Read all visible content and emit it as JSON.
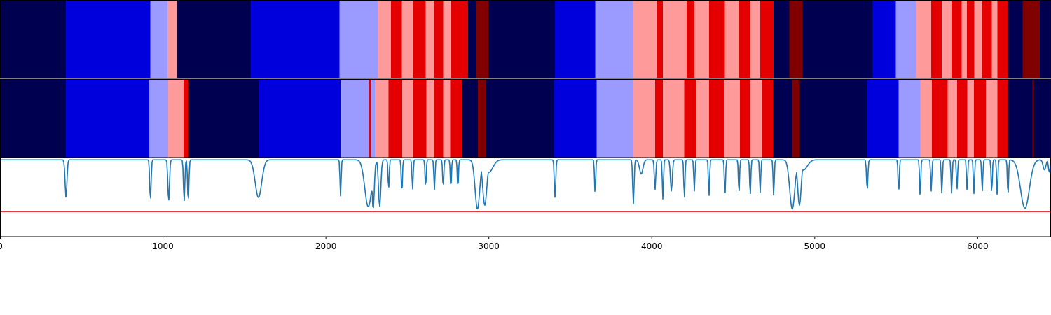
{
  "chart_data": {
    "type": "heatmap",
    "title": "",
    "xlabel": "",
    "ylabel": "",
    "xlim": [
      0,
      6450
    ],
    "x_ticks": [
      0,
      1000,
      2000,
      3000,
      4000,
      5000,
      6000
    ],
    "x_tick_labels": [
      "0",
      "1000",
      "2000",
      "3000",
      "4000",
      "5000",
      "6000"
    ],
    "colors": {
      "0": "#000050",
      "1": "#0000dc",
      "2": "#9a9aff",
      "3": "#ff9a9a",
      "4": "#e40000",
      "5": "#800000"
    },
    "rows": [
      {
        "segments": [
          [
            0,
            405,
            0
          ],
          [
            405,
            923,
            1
          ],
          [
            923,
            1027,
            2
          ],
          [
            1027,
            1085,
            3
          ],
          [
            1085,
            1539,
            0
          ],
          [
            1539,
            2084,
            1
          ],
          [
            2084,
            2322,
            2
          ],
          [
            2322,
            2399,
            3
          ],
          [
            2399,
            2466,
            4
          ],
          [
            2466,
            2532,
            3
          ],
          [
            2532,
            2612,
            4
          ],
          [
            2612,
            2666,
            3
          ],
          [
            2666,
            2720,
            4
          ],
          [
            2720,
            2767,
            3
          ],
          [
            2767,
            2810,
            4
          ],
          [
            2810,
            2872,
            4
          ],
          [
            2872,
            2922,
            0
          ],
          [
            2922,
            2997,
            5
          ],
          [
            2997,
            3406,
            0
          ],
          [
            3406,
            3652,
            1
          ],
          [
            3652,
            3883,
            2
          ],
          [
            3883,
            4032,
            3
          ],
          [
            4032,
            4068,
            4
          ],
          [
            4068,
            4213,
            3
          ],
          [
            4213,
            4261,
            4
          ],
          [
            4261,
            4351,
            3
          ],
          [
            4351,
            4449,
            4
          ],
          [
            4449,
            4535,
            3
          ],
          [
            4535,
            4604,
            4
          ],
          [
            4604,
            4665,
            3
          ],
          [
            4665,
            4748,
            4
          ],
          [
            4748,
            4845,
            0
          ],
          [
            4845,
            4925,
            5
          ],
          [
            4925,
            5356,
            0
          ],
          [
            5356,
            5498,
            1
          ],
          [
            5498,
            5622,
            2
          ],
          [
            5622,
            5714,
            3
          ],
          [
            5714,
            5780,
            4
          ],
          [
            5780,
            5840,
            3
          ],
          [
            5840,
            5901,
            4
          ],
          [
            5901,
            5935,
            3
          ],
          [
            5935,
            5980,
            4
          ],
          [
            5980,
            6028,
            3
          ],
          [
            6028,
            6086,
            4
          ],
          [
            6086,
            6120,
            3
          ],
          [
            6120,
            6186,
            4
          ],
          [
            6186,
            6276,
            0
          ],
          [
            6276,
            6381,
            5
          ],
          [
            6381,
            6450,
            0
          ]
        ]
      },
      {
        "segments": [
          [
            0,
            405,
            0
          ],
          [
            405,
            916,
            1
          ],
          [
            916,
            1032,
            2
          ],
          [
            1032,
            1126,
            3
          ],
          [
            1126,
            1157,
            4
          ],
          [
            1157,
            1586,
            0
          ],
          [
            1586,
            2090,
            1
          ],
          [
            2090,
            2263,
            2
          ],
          [
            2263,
            2279,
            4
          ],
          [
            2279,
            2300,
            2
          ],
          [
            2300,
            2320,
            3
          ],
          [
            2320,
            2385,
            3
          ],
          [
            2385,
            2469,
            4
          ],
          [
            2469,
            2532,
            3
          ],
          [
            2532,
            2617,
            4
          ],
          [
            2617,
            2662,
            3
          ],
          [
            2662,
            2720,
            4
          ],
          [
            2720,
            2762,
            3
          ],
          [
            2762,
            2834,
            4
          ],
          [
            2834,
            2932,
            0
          ],
          [
            2932,
            2983,
            5
          ],
          [
            2983,
            3399,
            0
          ],
          [
            3399,
            3662,
            1
          ],
          [
            3662,
            3887,
            2
          ],
          [
            3887,
            4020,
            3
          ],
          [
            4020,
            4068,
            4
          ],
          [
            4068,
            4200,
            3
          ],
          [
            4200,
            4275,
            4
          ],
          [
            4275,
            4352,
            3
          ],
          [
            4352,
            4446,
            4
          ],
          [
            4446,
            4540,
            3
          ],
          [
            4540,
            4604,
            4
          ],
          [
            4604,
            4676,
            3
          ],
          [
            4676,
            4743,
            4
          ],
          [
            4743,
            4862,
            0
          ],
          [
            4862,
            4906,
            5
          ],
          [
            4906,
            5322,
            0
          ],
          [
            5322,
            5515,
            1
          ],
          [
            5515,
            5647,
            2
          ],
          [
            5647,
            5720,
            3
          ],
          [
            5720,
            5815,
            4
          ],
          [
            5815,
            5873,
            3
          ],
          [
            5873,
            5936,
            4
          ],
          [
            5936,
            5977,
            3
          ],
          [
            5977,
            6050,
            4
          ],
          [
            6050,
            6120,
            3
          ],
          [
            6120,
            6186,
            4
          ],
          [
            6186,
            6337,
            0
          ],
          [
            6337,
            6345,
            5
          ],
          [
            6345,
            6450,
            0
          ]
        ]
      }
    ],
    "line_panel": {
      "ylim": [
        0,
        1
      ],
      "threshold": 0.32,
      "threshold_color": "#e02020",
      "line_color": "#1f77b4",
      "baseline": 0.98,
      "dips": [
        [
          405,
          0.5,
          8
        ],
        [
          923,
          0.46,
          6
        ],
        [
          1035,
          0.45,
          7
        ],
        [
          1130,
          0.45,
          6
        ],
        [
          1155,
          0.45,
          6
        ],
        [
          1586,
          0.5,
          28
        ],
        [
          2090,
          0.52,
          5
        ],
        [
          2260,
          0.38,
          30
        ],
        [
          2290,
          0.35,
          10
        ],
        [
          2330,
          0.38,
          10
        ],
        [
          2385,
          0.6,
          5
        ],
        [
          2466,
          0.55,
          5
        ],
        [
          2532,
          0.6,
          5
        ],
        [
          2612,
          0.62,
          5
        ],
        [
          2666,
          0.6,
          5
        ],
        [
          2720,
          0.62,
          5
        ],
        [
          2767,
          0.62,
          5
        ],
        [
          2810,
          0.62,
          5
        ],
        [
          2930,
          0.35,
          20
        ],
        [
          2975,
          0.4,
          18
        ],
        [
          3000,
          0.82,
          35
        ],
        [
          3406,
          0.5,
          6
        ],
        [
          3652,
          0.55,
          5
        ],
        [
          3887,
          0.42,
          6
        ],
        [
          3935,
          0.8,
          15
        ],
        [
          4020,
          0.6,
          6
        ],
        [
          4068,
          0.48,
          5
        ],
        [
          4120,
          0.58,
          8
        ],
        [
          4200,
          0.48,
          5
        ],
        [
          4261,
          0.58,
          5
        ],
        [
          4351,
          0.52,
          5
        ],
        [
          4449,
          0.52,
          5
        ],
        [
          4535,
          0.55,
          5
        ],
        [
          4604,
          0.52,
          5
        ],
        [
          4665,
          0.56,
          5
        ],
        [
          4748,
          0.52,
          5
        ],
        [
          4862,
          0.35,
          22
        ],
        [
          4906,
          0.4,
          15
        ],
        [
          4930,
          0.85,
          35
        ],
        [
          5322,
          0.6,
          6
        ],
        [
          5515,
          0.55,
          5
        ],
        [
          5647,
          0.52,
          5
        ],
        [
          5715,
          0.58,
          5
        ],
        [
          5780,
          0.55,
          5
        ],
        [
          5840,
          0.55,
          5
        ],
        [
          5873,
          0.6,
          5
        ],
        [
          5935,
          0.58,
          5
        ],
        [
          5977,
          0.55,
          5
        ],
        [
          6028,
          0.58,
          5
        ],
        [
          6086,
          0.55,
          5
        ],
        [
          6120,
          0.52,
          5
        ],
        [
          6186,
          0.52,
          5
        ],
        [
          6290,
          0.36,
          38
        ],
        [
          6410,
          0.85,
          12
        ],
        [
          6440,
          0.82,
          8
        ]
      ]
    }
  }
}
